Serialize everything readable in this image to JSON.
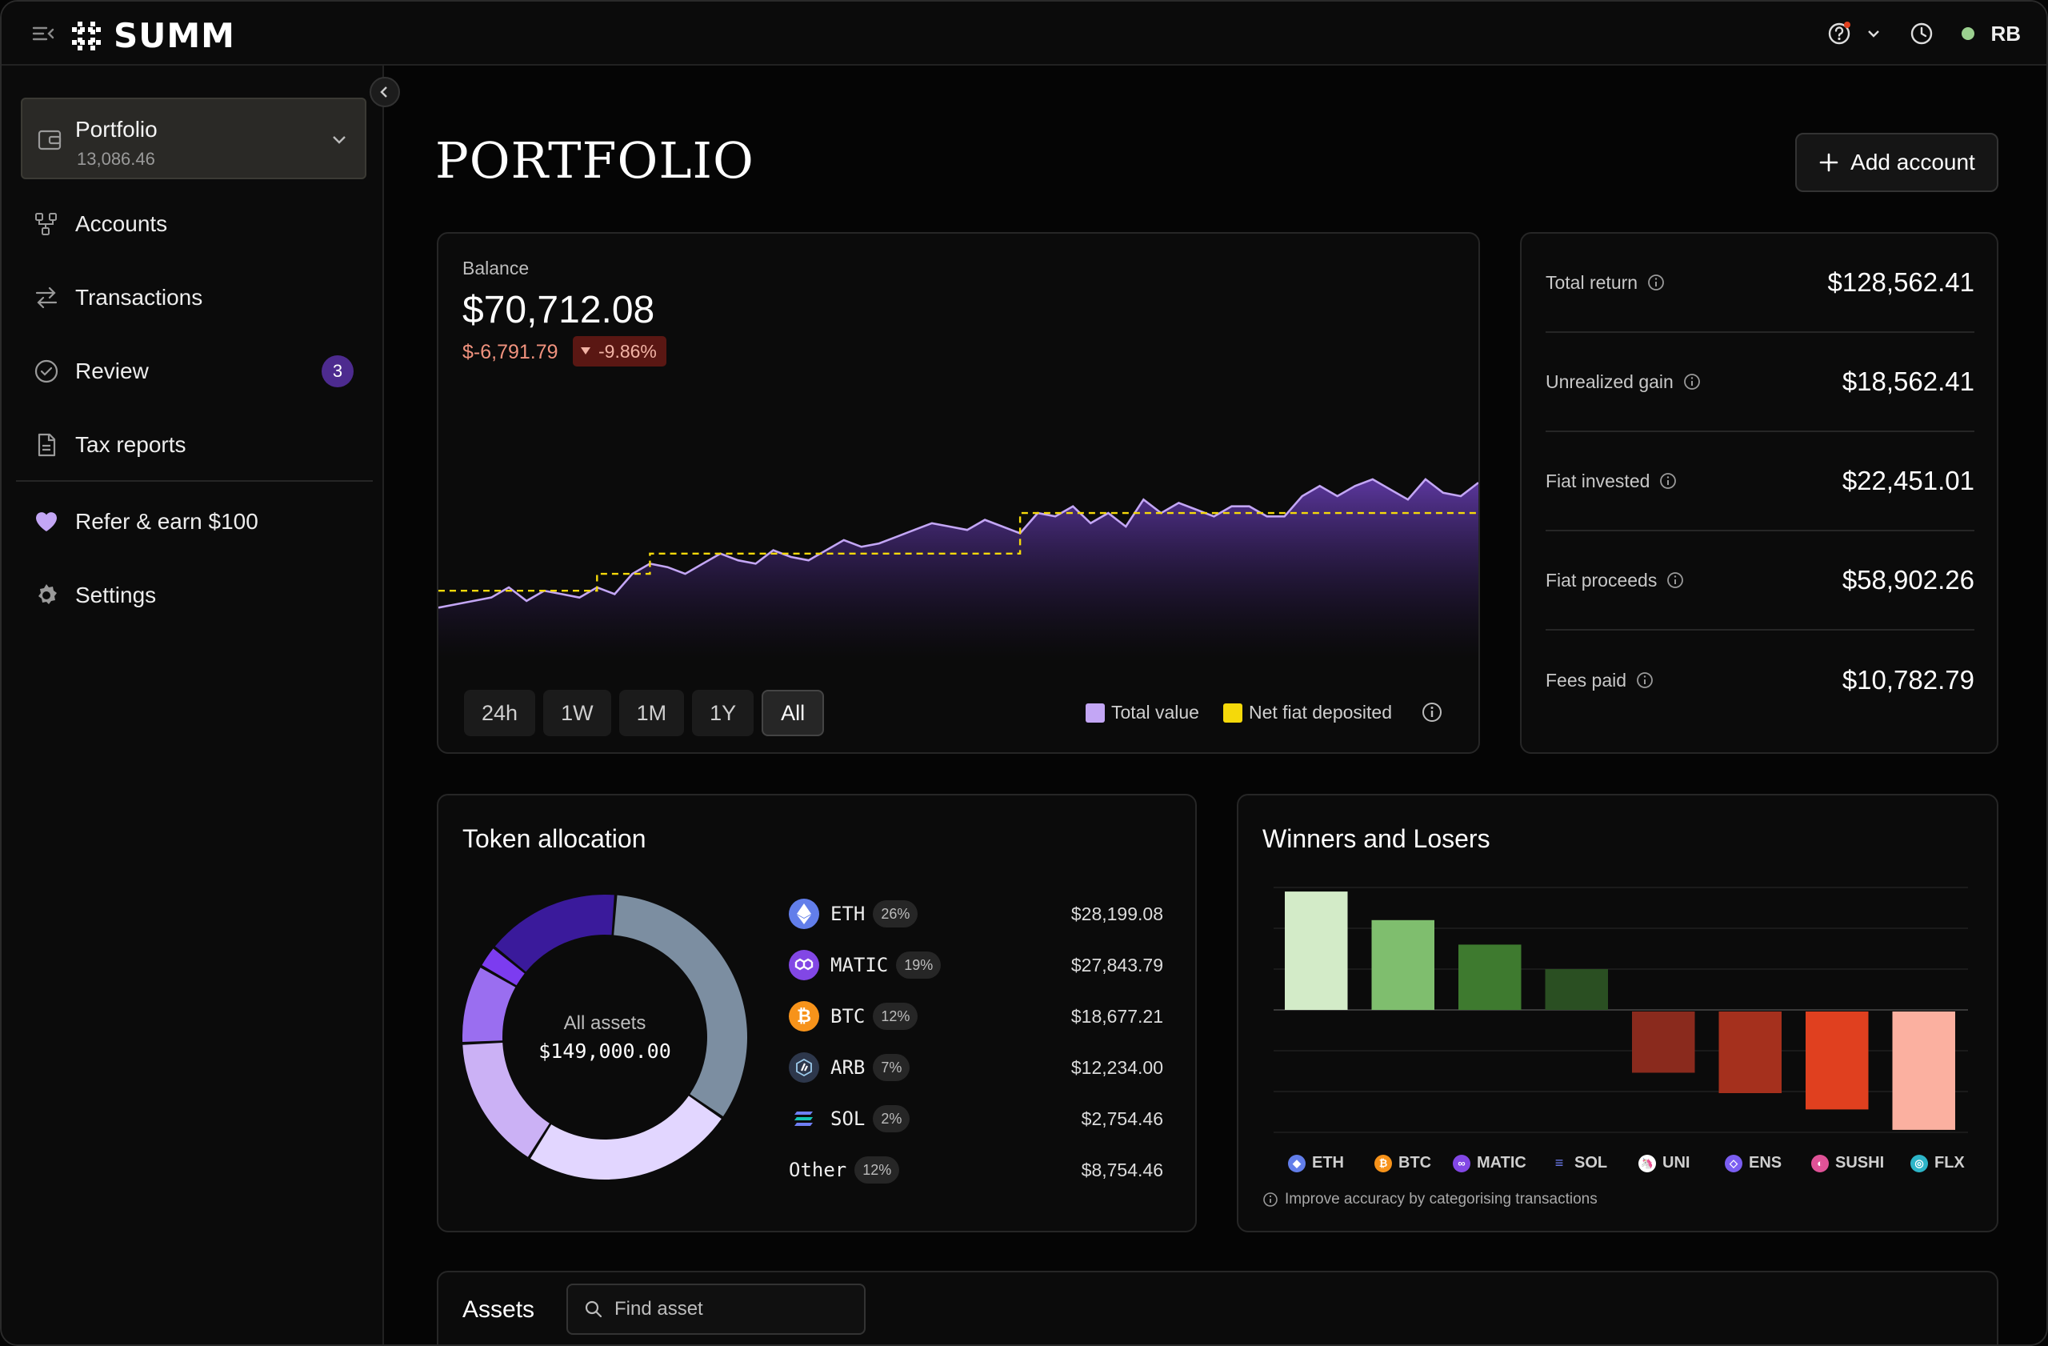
{
  "app": {
    "brand": "SUMM",
    "user_initials": "RB"
  },
  "sidebar": {
    "portfolio": {
      "title": "Portfolio",
      "value": "13,086.46"
    },
    "items": [
      {
        "label": "Accounts",
        "icon": "accounts-icon"
      },
      {
        "label": "Transactions",
        "icon": "transactions-icon"
      },
      {
        "label": "Review",
        "icon": "review-check-icon",
        "badge": "3"
      },
      {
        "label": "Tax reports",
        "icon": "document-icon"
      },
      {
        "label": "Refer & earn $100",
        "icon": "heart-icon"
      },
      {
        "label": "Settings",
        "icon": "gear-icon"
      }
    ]
  },
  "page": {
    "title": "PORTFOLIO",
    "add_account": "Add account"
  },
  "balance": {
    "label": "Balance",
    "value": "$70,712.08",
    "change": "$-6,791.79",
    "change_pct": "-9.86%",
    "ranges": [
      "24h",
      "1W",
      "1M",
      "1Y",
      "All"
    ],
    "active_range": "All",
    "legend": {
      "total": "Total value",
      "net": "Net fiat deposited"
    },
    "colors": {
      "total": "#c3a6f5",
      "net": "#f5d90a"
    }
  },
  "stats": [
    {
      "label": "Total return",
      "value": "$128,562.41"
    },
    {
      "label": "Unrealized gain",
      "value": "$18,562.41"
    },
    {
      "label": "Fiat invested",
      "value": "$22,451.01"
    },
    {
      "label": "Fiat proceeds",
      "value": "$58,902.26"
    },
    {
      "label": "Fees paid",
      "value": "$10,782.79"
    }
  ],
  "allocation": {
    "title": "Token allocation",
    "center_label": "All assets",
    "center_value": "$149,000.00",
    "tokens": [
      {
        "symbol": "ETH",
        "pct": "26%",
        "value": "$28,199.08",
        "color": "#627eea"
      },
      {
        "symbol": "MATIC",
        "pct": "19%",
        "value": "$27,843.79",
        "color": "#8247e5"
      },
      {
        "symbol": "BTC",
        "pct": "12%",
        "value": "$18,677.21",
        "color": "#f7931a"
      },
      {
        "symbol": "ARB",
        "pct": "7%",
        "value": "$12,234.00",
        "color": "#2d374b"
      },
      {
        "symbol": "SOL",
        "pct": "2%",
        "value": "$2,754.46",
        "color": "#14f195"
      },
      {
        "symbol": "Other",
        "pct": "12%",
        "value": "$8,754.46",
        "color": "#888888"
      }
    ]
  },
  "winners": {
    "title": "Winners and Losers",
    "note": "Improve accuracy by categorising transactions"
  },
  "assets": {
    "title": "Assets",
    "search_placeholder": "Find asset"
  },
  "chart_data": [
    {
      "type": "area",
      "series": [
        {
          "name": "Total value",
          "values": [
            3,
            4,
            5,
            6,
            9,
            5,
            8,
            7,
            6,
            9,
            7,
            13,
            16,
            15,
            13,
            16,
            19,
            17,
            16,
            20,
            18,
            17,
            20,
            23,
            21,
            22,
            24,
            26,
            28,
            27,
            26,
            29,
            27,
            25,
            31,
            30,
            33,
            28,
            31,
            27,
            35,
            31,
            34,
            32,
            30,
            33,
            33,
            30,
            30,
            36,
            39,
            36,
            39,
            41,
            38,
            35,
            41,
            37,
            36,
            40
          ]
        },
        {
          "name": "Net fiat deposited",
          "values": [
            8,
            8,
            8,
            8,
            8,
            8,
            8,
            8,
            8,
            13,
            13,
            13,
            19,
            19,
            19,
            19,
            19,
            19,
            19,
            19,
            19,
            19,
            19,
            19,
            19,
            19,
            19,
            19,
            19,
            19,
            19,
            19,
            19,
            31,
            31,
            31,
            31,
            31,
            31,
            31,
            31,
            31,
            31,
            31,
            31,
            31,
            31,
            31,
            31,
            31,
            31,
            31,
            31,
            31,
            31,
            31,
            31,
            31,
            31,
            31
          ]
        }
      ]
    },
    {
      "type": "pie",
      "categories": [
        "ETH",
        "MATIC",
        "BTC",
        "ARB",
        "SOL",
        "Other"
      ],
      "values": [
        26,
        19,
        12,
        7,
        2,
        12
      ]
    },
    {
      "type": "bar",
      "categories": [
        "ETH",
        "BTC",
        "MATIC",
        "SOL",
        "UNI",
        "ENS",
        "SUSHI",
        "FLX"
      ],
      "values": [
        2.9,
        2.2,
        1.6,
        1.0,
        -1.5,
        -2.0,
        -2.4,
        -2.9
      ],
      "colors": [
        "#d3ebc8",
        "#7fbe6e",
        "#3e7a2f",
        "#2a4f22",
        "#8a2a1d",
        "#a5301d",
        "#e0401f",
        "#fbb0a0"
      ]
    }
  ]
}
